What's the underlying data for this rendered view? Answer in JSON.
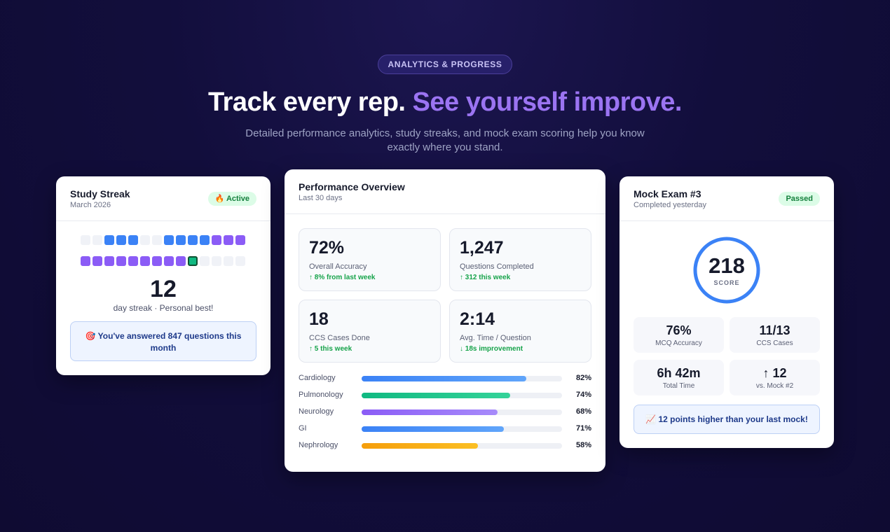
{
  "hero": {
    "pill": "ANALYTICS & PROGRESS",
    "headline_main": "Track every rep.",
    "headline_accent": "See yourself improve.",
    "subline": "Detailed performance analytics, study streaks, and mock exam scoring help you know exactly where you stand."
  },
  "streak": {
    "title": "Study Streak",
    "subtitle": "March 2026",
    "badge": "🔥 Active",
    "row1": [
      "empty",
      "empty",
      "blue",
      "blue",
      "blue",
      "empty",
      "empty",
      "blue",
      "blue",
      "blue",
      "blue",
      "purple",
      "purple",
      "purple"
    ],
    "row2": [
      "purple",
      "purple",
      "purple",
      "purple",
      "purple",
      "purple",
      "purple",
      "purple",
      "purple",
      "today",
      "empty",
      "empty",
      "empty",
      "empty"
    ],
    "count": "12",
    "label": "day streak · Personal best!",
    "info": "🎯 You've answered 847 questions this month"
  },
  "performance": {
    "title": "Performance Overview",
    "subtitle": "Last 30 days",
    "stats": [
      {
        "value": "72%",
        "label": "Overall Accuracy",
        "delta": "↑ 8% from last week"
      },
      {
        "value": "1,247",
        "label": "Questions Completed",
        "delta": "↑ 312 this week"
      },
      {
        "value": "18",
        "label": "CCS Cases Done",
        "delta": "↑ 5 this week"
      },
      {
        "value": "2:14",
        "label": "Avg. Time / Question",
        "delta": "↓ 18s improvement"
      }
    ],
    "subjects": [
      {
        "name": "Cardiology",
        "pct_label": "82%",
        "value": 82,
        "color": "#3b82f6"
      },
      {
        "name": "Pulmonology",
        "pct_label": "74%",
        "value": 74,
        "color": "#10b981"
      },
      {
        "name": "Neurology",
        "pct_label": "68%",
        "value": 68,
        "color": "#8b5cf6"
      },
      {
        "name": "GI",
        "pct_label": "71%",
        "value": 71,
        "color": "#3b82f6"
      },
      {
        "name": "Nephrology",
        "pct_label": "58%",
        "value": 58,
        "color": "#f59e0b"
      }
    ]
  },
  "mock": {
    "title": "Mock Exam #3",
    "subtitle": "Completed yesterday",
    "badge": "Passed",
    "score": "218",
    "score_label": "SCORE",
    "stats": [
      {
        "value": "76%",
        "label": "MCQ Accuracy"
      },
      {
        "value": "11/13",
        "label": "CCS Cases"
      },
      {
        "value": "6h 42m",
        "label": "Total Time"
      },
      {
        "value": "↑ 12",
        "label": "vs. Mock #2"
      }
    ],
    "note": "📈 12 points higher than your last mock!"
  },
  "colors": {
    "accent_purple": "#9b74f2",
    "ring_blue": "#3b82f6",
    "positive_green": "#16a34a"
  }
}
